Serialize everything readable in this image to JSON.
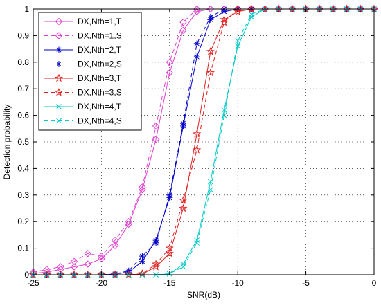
{
  "chart_data": {
    "type": "line",
    "title": "",
    "xlabel": "SNR(dB)",
    "ylabel": "Detection probability",
    "xlim": [
      -25,
      0
    ],
    "ylim": [
      0,
      1
    ],
    "xticks": [
      -25,
      -20,
      -15,
      -10,
      -5,
      0
    ],
    "yticks": [
      0,
      0.1,
      0.2,
      0.3,
      0.4,
      0.5,
      0.6,
      0.7,
      0.8,
      0.9,
      1
    ],
    "grid": "dotted",
    "legend_position": "top-left",
    "x": [
      -25,
      -24,
      -23,
      -22,
      -21,
      -20,
      -19,
      -18,
      -17,
      -16,
      -15,
      -14,
      -13,
      -12,
      -11,
      -10,
      -9,
      -8,
      -7,
      -6,
      -5,
      -4,
      -3,
      -2,
      -1,
      0
    ],
    "series": [
      {
        "name": "DX,Nth=1,T",
        "color": "#e040d0",
        "marker": "diamond",
        "linestyle": "solid",
        "values": [
          0.005,
          0.01,
          0.02,
          0.03,
          0.04,
          0.06,
          0.11,
          0.19,
          0.32,
          0.51,
          0.76,
          0.92,
          0.99,
          1,
          1,
          1,
          1,
          1,
          1,
          1,
          1,
          1,
          1,
          1,
          1,
          1
        ]
      },
      {
        "name": "DX,Nth=1,S",
        "color": "#e040d0",
        "marker": "diamond",
        "linestyle": "dashed",
        "values": [
          0.01,
          0.02,
          0.03,
          0.05,
          0.08,
          0.07,
          0.13,
          0.2,
          0.33,
          0.56,
          0.8,
          0.95,
          1,
          1,
          1,
          1,
          1,
          1,
          1,
          1,
          1,
          1,
          1,
          1,
          1,
          1
        ]
      },
      {
        "name": "DX,Nth=2,T",
        "color": "#0000c8",
        "marker": "asterisk",
        "linestyle": "solid",
        "values": [
          0,
          0,
          0,
          0,
          0,
          0,
          0.002,
          0.01,
          0.05,
          0.13,
          0.29,
          0.56,
          0.82,
          0.96,
          0.99,
          1,
          1,
          1,
          1,
          1,
          1,
          1,
          1,
          1,
          1,
          1
        ]
      },
      {
        "name": "DX,Nth=2,S",
        "color": "#0000c8",
        "marker": "asterisk",
        "linestyle": "dashed",
        "values": [
          0,
          0,
          0,
          0,
          0,
          0,
          0.003,
          0.015,
          0.07,
          0.12,
          0.3,
          0.57,
          0.87,
          0.97,
          1,
          1,
          1,
          1,
          1,
          1,
          1,
          1,
          1,
          1,
          1,
          1
        ]
      },
      {
        "name": "DX,Nth=3,T",
        "color": "#e02020",
        "marker": "star",
        "linestyle": "solid",
        "values": [
          0,
          0,
          0,
          0,
          0,
          0,
          0,
          0,
          0.003,
          0.03,
          0.08,
          0.25,
          0.53,
          0.84,
          0.96,
          0.99,
          1,
          1,
          1,
          1,
          1,
          1,
          1,
          1,
          1,
          1
        ]
      },
      {
        "name": "DX,Nth=3,S",
        "color": "#e02020",
        "marker": "star",
        "linestyle": "dashed",
        "values": [
          0,
          0,
          0,
          0,
          0,
          0,
          0,
          0,
          0.004,
          0.04,
          0.1,
          0.28,
          0.47,
          0.76,
          0.95,
          1,
          1,
          1,
          1,
          1,
          1,
          1,
          1,
          1,
          1,
          1
        ]
      },
      {
        "name": "DX,Nth=4,T",
        "color": "#00c8c8",
        "marker": "x",
        "linestyle": "solid",
        "values": [
          0,
          0,
          0,
          0,
          0,
          0,
          0,
          0,
          0,
          0,
          0.003,
          0.04,
          0.13,
          0.35,
          0.62,
          0.86,
          0.97,
          1,
          1,
          1,
          1,
          1,
          1,
          1,
          1,
          1
        ]
      },
      {
        "name": "DX,Nth=4,S",
        "color": "#00c8c8",
        "marker": "x",
        "linestyle": "dashed",
        "values": [
          0,
          0,
          0,
          0,
          0,
          0,
          0,
          0,
          0,
          0,
          0.004,
          0.03,
          0.12,
          0.32,
          0.6,
          0.88,
          0.98,
          1,
          1,
          1,
          1,
          1,
          1,
          1,
          1,
          1
        ]
      }
    ]
  }
}
